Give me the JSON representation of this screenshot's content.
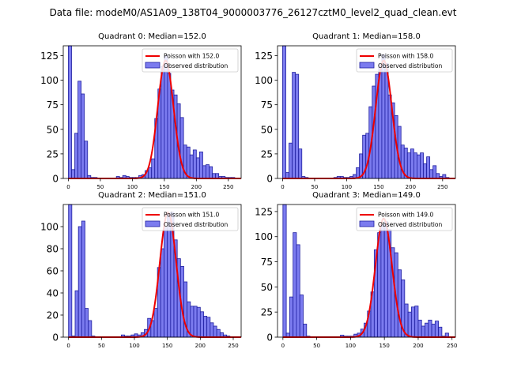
{
  "figure_title": "Data file: modeM0/AS1A09_138T04_9000003776_26127cztM0_level2_quad_clean.evt",
  "legend_observed": "Observed distribution",
  "colors": {
    "bar_fill": "#7b7bef",
    "bar_edge": "#1f1fa0",
    "curve": "#ee0000"
  },
  "chart_data": [
    {
      "type": "bar",
      "title": "Quadrant 0: Median=152.0",
      "median": 152.0,
      "poisson_label": "Poisson with 152.0",
      "xlim": [
        -8,
        270
      ],
      "ylim": [
        0,
        135
      ],
      "xticks": [
        0,
        50,
        100,
        150,
        200,
        250
      ],
      "yticks": [
        0,
        25,
        50,
        75,
        100,
        125
      ],
      "bin_width": 5,
      "bins": [
        [
          0,
          135
        ],
        [
          5,
          9
        ],
        [
          10,
          46
        ],
        [
          15,
          99
        ],
        [
          20,
          86
        ],
        [
          25,
          38
        ],
        [
          30,
          3
        ],
        [
          35,
          1
        ],
        [
          40,
          1
        ],
        [
          75,
          2
        ],
        [
          80,
          1
        ],
        [
          85,
          3
        ],
        [
          90,
          2
        ],
        [
          95,
          1
        ],
        [
          100,
          1
        ],
        [
          105,
          1
        ],
        [
          110,
          3
        ],
        [
          115,
          4
        ],
        [
          120,
          8
        ],
        [
          125,
          11
        ],
        [
          130,
          20
        ],
        [
          135,
          61
        ],
        [
          140,
          91
        ],
        [
          145,
          114
        ],
        [
          150,
          125
        ],
        [
          155,
          107
        ],
        [
          160,
          90
        ],
        [
          165,
          85
        ],
        [
          170,
          76
        ],
        [
          175,
          62
        ],
        [
          180,
          34
        ],
        [
          185,
          32
        ],
        [
          190,
          24
        ],
        [
          195,
          29
        ],
        [
          200,
          21
        ],
        [
          205,
          27
        ],
        [
          210,
          13
        ],
        [
          215,
          14
        ],
        [
          220,
          12
        ],
        [
          225,
          5
        ],
        [
          230,
          5
        ],
        [
          235,
          2
        ],
        [
          240,
          2
        ],
        [
          245,
          1
        ],
        [
          250,
          1
        ],
        [
          255,
          1
        ]
      ],
      "poisson_peak": 120
    },
    {
      "type": "bar",
      "title": "Quadrant 1: Median=158.0",
      "median": 158.0,
      "poisson_label": "Poisson with 158.0",
      "xlim": [
        -8,
        270
      ],
      "ylim": [
        0,
        135
      ],
      "xticks": [
        0,
        50,
        100,
        150,
        200,
        250
      ],
      "yticks": [
        0,
        25,
        50,
        75,
        100,
        125
      ],
      "bin_width": 5,
      "bins": [
        [
          0,
          135
        ],
        [
          5,
          6
        ],
        [
          10,
          36
        ],
        [
          15,
          108
        ],
        [
          20,
          106
        ],
        [
          25,
          30
        ],
        [
          30,
          2
        ],
        [
          35,
          1
        ],
        [
          80,
          1
        ],
        [
          85,
          2
        ],
        [
          90,
          2
        ],
        [
          95,
          1
        ],
        [
          100,
          1
        ],
        [
          105,
          2
        ],
        [
          110,
          4
        ],
        [
          115,
          11
        ],
        [
          120,
          25
        ],
        [
          125,
          44
        ],
        [
          130,
          46
        ],
        [
          135,
          73
        ],
        [
          140,
          94
        ],
        [
          145,
          106
        ],
        [
          150,
          116
        ],
        [
          155,
          126
        ],
        [
          160,
          117
        ],
        [
          165,
          85
        ],
        [
          170,
          77
        ],
        [
          175,
          64
        ],
        [
          180,
          53
        ],
        [
          185,
          34
        ],
        [
          190,
          31
        ],
        [
          195,
          26
        ],
        [
          200,
          30
        ],
        [
          205,
          26
        ],
        [
          210,
          24
        ],
        [
          215,
          26
        ],
        [
          220,
          15
        ],
        [
          225,
          22
        ],
        [
          230,
          9
        ],
        [
          235,
          13
        ],
        [
          240,
          5
        ],
        [
          245,
          2
        ],
        [
          250,
          4
        ],
        [
          255,
          1
        ]
      ],
      "poisson_peak": 120
    },
    {
      "type": "bar",
      "title": "Quadrant 2: Median=151.0",
      "median": 151.0,
      "poisson_label": "Poisson with 151.0",
      "xlim": [
        -8,
        262
      ],
      "ylim": [
        0,
        120
      ],
      "xticks": [
        0,
        50,
        100,
        150,
        200,
        250
      ],
      "yticks": [
        0,
        20,
        40,
        60,
        80,
        100
      ],
      "bin_width": 5,
      "bins": [
        [
          0,
          120
        ],
        [
          5,
          1
        ],
        [
          10,
          42
        ],
        [
          15,
          100
        ],
        [
          20,
          105
        ],
        [
          25,
          26
        ],
        [
          30,
          15
        ],
        [
          35,
          1
        ],
        [
          80,
          2
        ],
        [
          85,
          1
        ],
        [
          90,
          1
        ],
        [
          95,
          2
        ],
        [
          100,
          3
        ],
        [
          105,
          2
        ],
        [
          110,
          4
        ],
        [
          115,
          7
        ],
        [
          120,
          17
        ],
        [
          125,
          15
        ],
        [
          130,
          26
        ],
        [
          135,
          63
        ],
        [
          140,
          80
        ],
        [
          145,
          99
        ],
        [
          150,
          112
        ],
        [
          155,
          113
        ],
        [
          160,
          88
        ],
        [
          165,
          71
        ],
        [
          170,
          64
        ],
        [
          175,
          50
        ],
        [
          180,
          32
        ],
        [
          185,
          28
        ],
        [
          190,
          28
        ],
        [
          195,
          27
        ],
        [
          200,
          23
        ],
        [
          205,
          19
        ],
        [
          210,
          18
        ],
        [
          215,
          13
        ],
        [
          220,
          10
        ],
        [
          225,
          7
        ],
        [
          230,
          4
        ],
        [
          235,
          2
        ],
        [
          240,
          1
        ]
      ],
      "poisson_peak": 113
    },
    {
      "type": "bar",
      "title": "Quadrant 3: Median=149.0",
      "median": 149.0,
      "poisson_label": "Poisson with 149.0",
      "xlim": [
        -8,
        255
      ],
      "ylim": [
        0,
        132
      ],
      "xticks": [
        0,
        50,
        100,
        150,
        200,
        250
      ],
      "yticks": [
        0,
        25,
        50,
        75,
        100,
        125
      ],
      "bin_width": 5,
      "bins": [
        [
          0,
          132
        ],
        [
          5,
          4
        ],
        [
          10,
          40
        ],
        [
          15,
          104
        ],
        [
          20,
          92
        ],
        [
          25,
          42
        ],
        [
          30,
          13
        ],
        [
          35,
          1
        ],
        [
          85,
          2
        ],
        [
          90,
          1
        ],
        [
          95,
          1
        ],
        [
          100,
          1
        ],
        [
          105,
          3
        ],
        [
          110,
          4
        ],
        [
          115,
          8
        ],
        [
          120,
          14
        ],
        [
          125,
          26
        ],
        [
          130,
          45
        ],
        [
          135,
          87
        ],
        [
          140,
          104
        ],
        [
          145,
          112
        ],
        [
          150,
          115
        ],
        [
          155,
          107
        ],
        [
          160,
          89
        ],
        [
          165,
          84
        ],
        [
          170,
          67
        ],
        [
          175,
          57
        ],
        [
          180,
          33
        ],
        [
          185,
          25
        ],
        [
          190,
          30
        ],
        [
          195,
          31
        ],
        [
          200,
          17
        ],
        [
          205,
          11
        ],
        [
          210,
          14
        ],
        [
          215,
          17
        ],
        [
          220,
          13
        ],
        [
          225,
          16
        ],
        [
          230,
          10
        ],
        [
          235,
          1
        ],
        [
          240,
          4
        ]
      ],
      "poisson_peak": 118
    }
  ]
}
